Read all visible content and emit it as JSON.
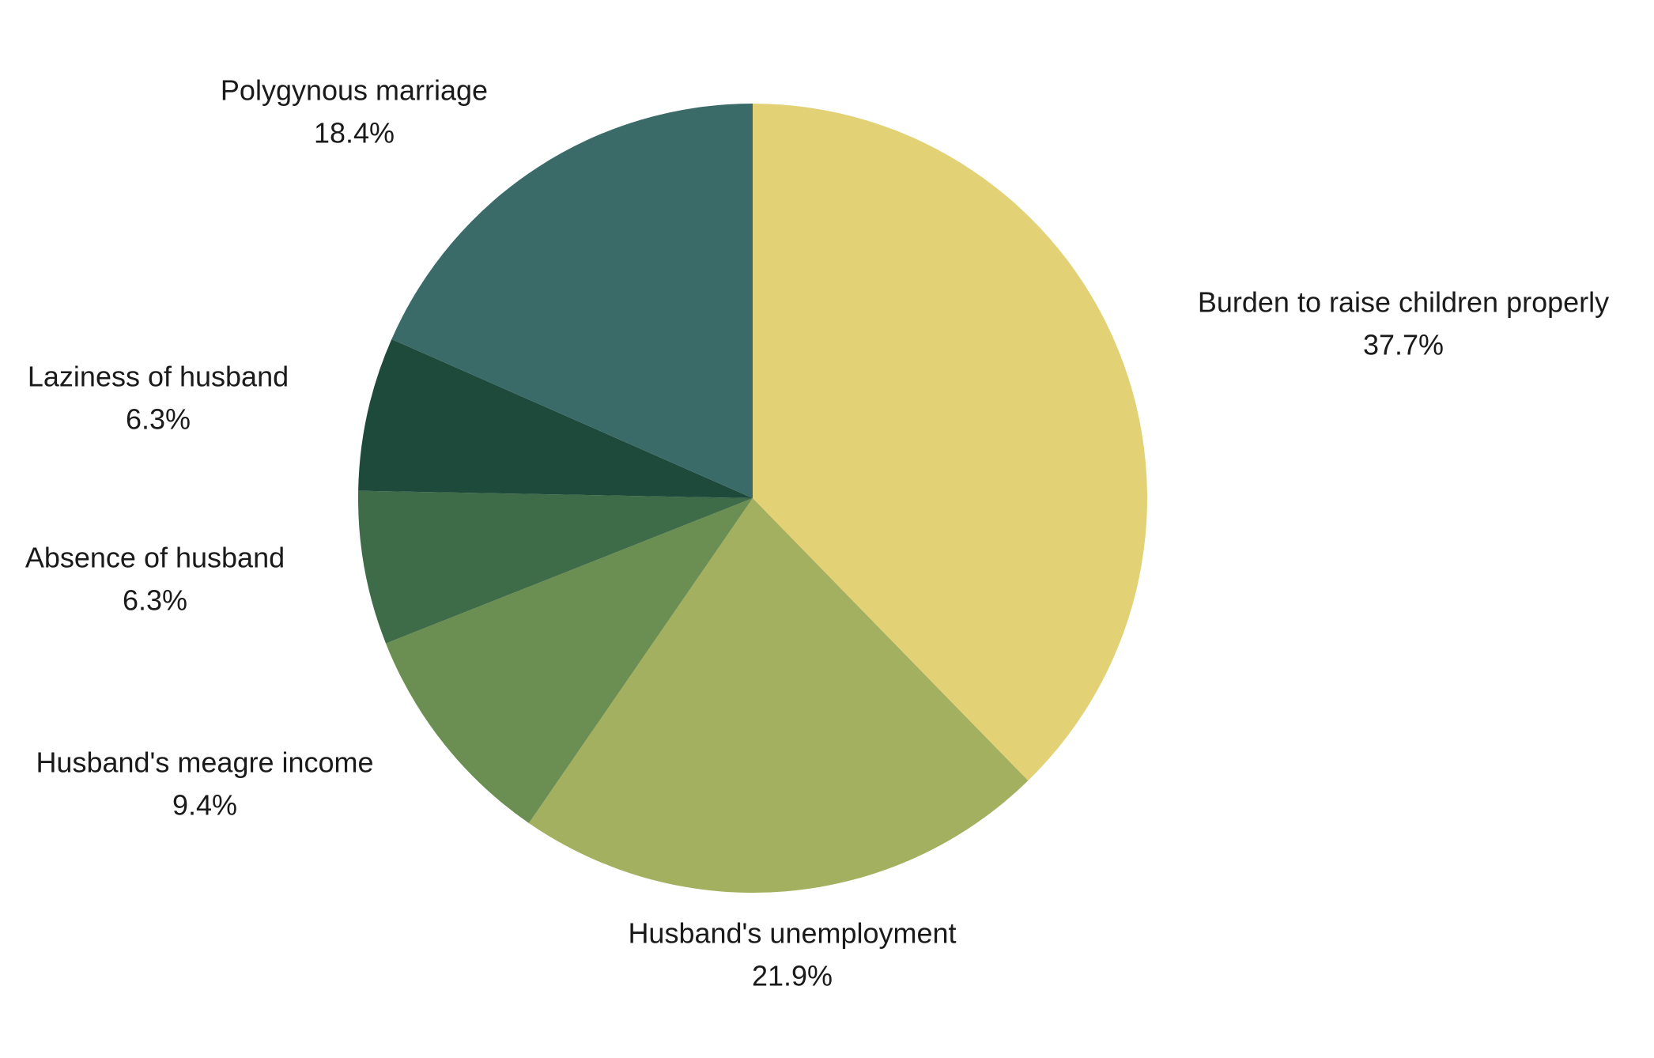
{
  "chart_data": {
    "type": "pie",
    "categories": [
      "Burden to raise children properly",
      "Husband's unemployment",
      "Husband's meagre income",
      "Absence of husband",
      "Laziness of husband",
      "Polygynous marriage"
    ],
    "values": [
      37.7,
      21.9,
      9.4,
      6.3,
      6.3,
      18.4
    ],
    "value_labels": [
      "37.7%",
      "21.9%",
      "9.4%",
      "6.3%",
      "6.3%",
      "18.4%"
    ],
    "colors": [
      "#e3d176",
      "#a3b060",
      "#6b8f52",
      "#3e6b48",
      "#1e4a3b",
      "#3b6b68"
    ]
  }
}
